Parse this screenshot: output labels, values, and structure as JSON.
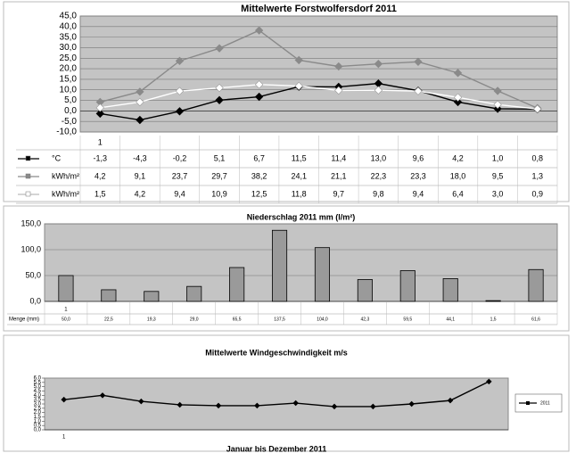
{
  "chart_data": [
    {
      "type": "line",
      "title": "Mittelwerte Forstwolfersdorf 2011",
      "categories": [
        "1",
        null,
        null,
        null,
        null,
        null,
        null,
        null,
        null,
        null,
        null,
        null
      ],
      "ylim": [
        -10,
        45
      ],
      "yticks": [
        {
          "value": -10,
          "label": "-10,0"
        },
        {
          "value": -5,
          "label": "-5,0"
        },
        {
          "value": 0,
          "label": "0,0"
        },
        {
          "value": 5,
          "label": "5,0"
        },
        {
          "value": 10,
          "label": "10,0"
        },
        {
          "value": 15,
          "label": "15,0"
        },
        {
          "value": 20,
          "label": "20,0"
        },
        {
          "value": 25,
          "label": "25,0"
        },
        {
          "value": 30,
          "label": "30,0"
        },
        {
          "value": 35,
          "label": "35,0"
        },
        {
          "value": 40,
          "label": "40,0"
        },
        {
          "value": 45,
          "label": "45,0"
        }
      ],
      "grid": true,
      "series": [
        {
          "name": "°C",
          "color": "#000000",
          "values": [
            -1.3,
            -4.3,
            -0.2,
            5.1,
            6.7,
            11.5,
            11.4,
            13.0,
            9.6,
            4.2,
            1.0,
            0.8
          ],
          "value_labels": [
            "-1,3",
            "-4,3",
            "-0,2",
            "5,1",
            "6,7",
            "11,5",
            "11,4",
            "13,0",
            "9,6",
            "4,2",
            "1,0",
            "0,8"
          ]
        },
        {
          "name": "kWh/m²",
          "color": "#8a8a8a",
          "values": [
            4.2,
            9.1,
            23.7,
            29.7,
            38.2,
            24.1,
            21.1,
            22.3,
            23.3,
            18.0,
            9.5,
            1.3
          ],
          "value_labels": [
            "4,2",
            "9,1",
            "23,7",
            "29,7",
            "38,2",
            "24,1",
            "21,1",
            "22,3",
            "23,3",
            "18,0",
            "9,5",
            "1,3"
          ]
        },
        {
          "name": "kWh/m²",
          "color": "#ffffff",
          "values": [
            1.5,
            4.2,
            9.4,
            10.9,
            12.5,
            11.8,
            9.7,
            9.8,
            9.4,
            6.4,
            3.0,
            0.9
          ],
          "value_labels": [
            "1,5",
            "4,2",
            "9,4",
            "10,9",
            "12,5",
            "11,8",
            "9,7",
            "9,8",
            "9,4",
            "6,4",
            "3,0",
            "0,9"
          ]
        }
      ]
    },
    {
      "type": "bar",
      "title": "Niederschlag 2011 mm (l/m²)",
      "categories": [
        "1",
        null,
        null,
        null,
        null,
        null,
        null,
        null,
        null,
        null,
        null,
        null
      ],
      "ylim": [
        0,
        150
      ],
      "yticks": [
        {
          "value": 0,
          "label": "0,0"
        },
        {
          "value": 50,
          "label": "50,0"
        },
        {
          "value": 100,
          "label": "100,0"
        },
        {
          "value": 150,
          "label": "150,0"
        }
      ],
      "grid": true,
      "series": [
        {
          "name": "Menge (mm)",
          "color": "#9a9a9a",
          "values": [
            50.0,
            22.5,
            19.3,
            29.0,
            65.5,
            137.5,
            104.0,
            42.3,
            59.5,
            44.1,
            1.5,
            61.6
          ],
          "value_labels": [
            "50,0",
            "22,5",
            "19,3",
            "29,0",
            "65,5",
            "137,5",
            "104,0",
            "42,3",
            "59,5",
            "44,1",
            "1,5",
            "61,6"
          ]
        }
      ]
    },
    {
      "type": "line",
      "title": "Mittelwerte Windgeschwindigkeit m/s",
      "x_label": "Januar bis Dezember 2011",
      "categories": [
        "1",
        null,
        null,
        null,
        null,
        null,
        null,
        null,
        null,
        null,
        null,
        null
      ],
      "ylim": [
        0,
        6
      ],
      "yticks": [
        {
          "value": 0,
          "label": "0,0"
        },
        {
          "value": 0.5,
          "label": "0,5"
        },
        {
          "value": 1,
          "label": "1,0"
        },
        {
          "value": 1.5,
          "label": "1,5"
        },
        {
          "value": 2,
          "label": "2,0"
        },
        {
          "value": 2.5,
          "label": "2,5"
        },
        {
          "value": 3,
          "label": "3,0"
        },
        {
          "value": 3.5,
          "label": "3,5"
        },
        {
          "value": 4,
          "label": "4,0"
        },
        {
          "value": 4.5,
          "label": "4,5"
        },
        {
          "value": 5,
          "label": "5,0"
        },
        {
          "value": 5.5,
          "label": "5,5"
        },
        {
          "value": 6,
          "label": "6,0"
        }
      ],
      "grid": false,
      "legend": "right",
      "series": [
        {
          "name": "2011",
          "color": "#000000",
          "values": [
            3.5,
            4.0,
            3.3,
            2.9,
            2.8,
            2.8,
            3.1,
            2.7,
            2.7,
            3.0,
            3.4,
            5.6
          ]
        }
      ]
    }
  ]
}
